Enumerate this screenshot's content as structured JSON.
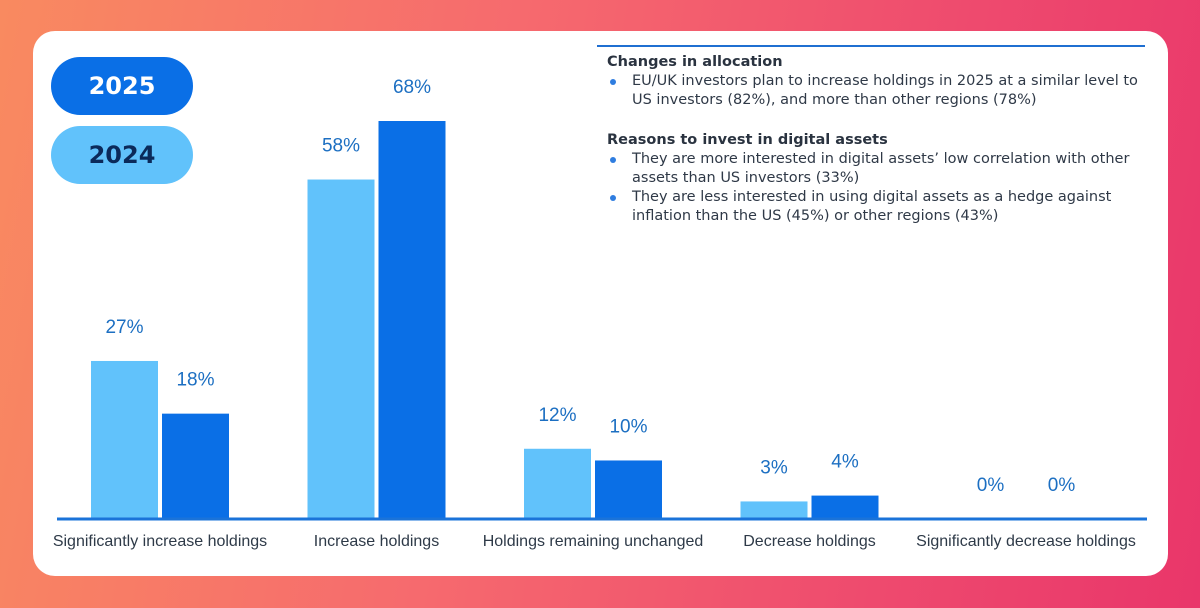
{
  "legend": {
    "items": [
      {
        "label": "2025",
        "color": "#0a6fe6"
      },
      {
        "label": "2024",
        "color": "#61c2fb"
      }
    ]
  },
  "notes": {
    "sections": [
      {
        "heading": "Changes in allocation",
        "bullets": [
          "EU/UK investors plan to increase holdings in 2025 at a similar level to US investors (82%), and more than other regions (78%)"
        ]
      },
      {
        "heading": "Reasons to invest in digital assets",
        "bullets": [
          "They are more interested in digital assets’ low correlation with other assets than US investors (33%)",
          "They are less interested in using digital assets as a hedge against inflation than the US (45%) or other regions (43%)"
        ]
      }
    ]
  },
  "chart_data": {
    "type": "bar",
    "categories": [
      "Significantly increase holdings",
      "Increase holdings",
      "Holdings remaining unchanged",
      "Decrease holdings",
      "Significantly decrease holdings"
    ],
    "series": [
      {
        "name": "2024",
        "color": "#61c2fb",
        "values": [
          27,
          58,
          12,
          3,
          0
        ]
      },
      {
        "name": "2025",
        "color": "#0a6fe6",
        "values": [
          18,
          68,
          10,
          4,
          0
        ]
      }
    ],
    "value_suffix": "%",
    "ylim": [
      0,
      68
    ],
    "grid": false,
    "legend_position": "top-left",
    "axis_color": "#1a73d9",
    "label_color": "#1c6fc2"
  }
}
